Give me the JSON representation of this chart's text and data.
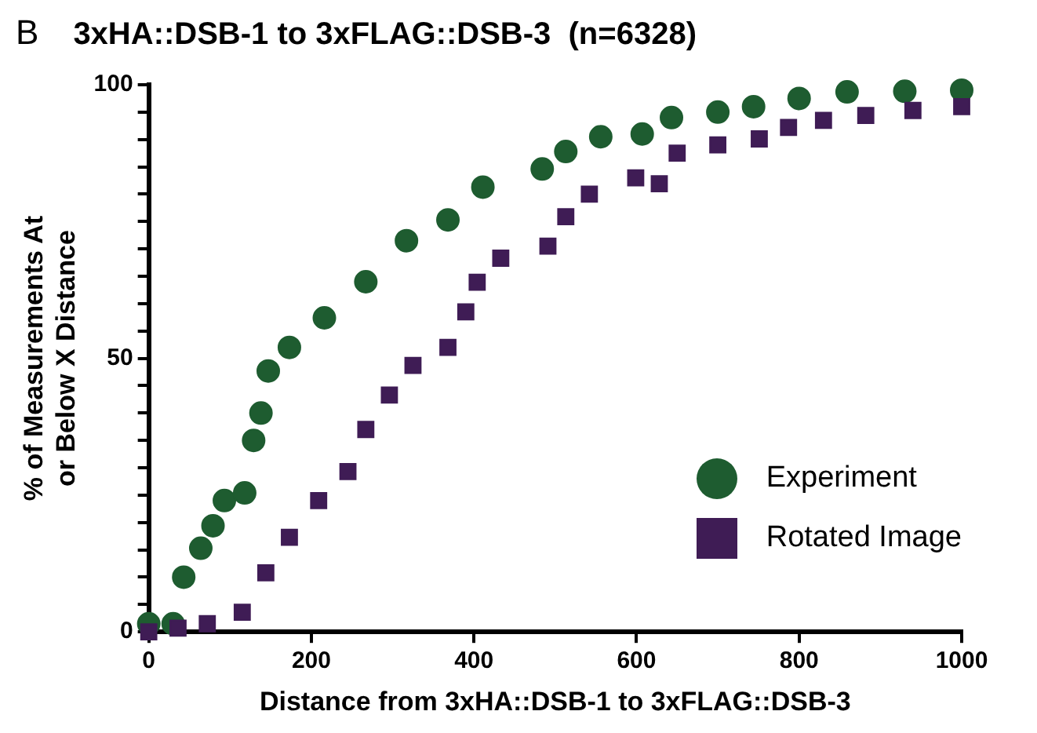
{
  "chart_data": {
    "type": "scatter",
    "title": "3xHA::DSB-1 to 3xFLAG::DSB-3  (n=6328)",
    "annotations": [
      "B"
    ],
    "xlabel": "Distance from 3xHA::DSB-1 to 3xFLAG::DSB-3",
    "ylabel": "% of Measurements At or Below X Distance",
    "series": [
      {
        "name": "Experiment",
        "color": "#1e5c30",
        "marker": "circle",
        "x": [
          0,
          30,
          43,
          64,
          79,
          93,
          118,
          129,
          138,
          147,
          173,
          216,
          267,
          317,
          368,
          411,
          484,
          513,
          556,
          607,
          643,
          700,
          744,
          800,
          859,
          930,
          1000
        ],
        "values": [
          1.5,
          1.5,
          10,
          15.3,
          19.4,
          24,
          25.4,
          35,
          40,
          47.7,
          52,
          57.4,
          64,
          71.5,
          75.3,
          81.3,
          84.6,
          87.8,
          90.5,
          91,
          94,
          95,
          96,
          97.5,
          98.7,
          98.8,
          99
        ]
      },
      {
        "name": "Rotated Image",
        "color": "#3f1c55",
        "marker": "square",
        "x": [
          0,
          36,
          72,
          115,
          144,
          173,
          209,
          245,
          267,
          296,
          325,
          368,
          390,
          404,
          433,
          491,
          513,
          542,
          599,
          628,
          650,
          700,
          751,
          787,
          830,
          882,
          940,
          1000
        ],
        "values": [
          0,
          0.7,
          1.5,
          3.6,
          10.8,
          17.3,
          24,
          29.3,
          37,
          43.3,
          48.7,
          52,
          58.5,
          63.9,
          68.3,
          70.5,
          75.9,
          80,
          83,
          81.9,
          87.5,
          89,
          90.1,
          92.2,
          93.5,
          94.4,
          95.3,
          96
        ]
      }
    ],
    "xlim": [
      0,
      1000
    ],
    "xticks": [
      0,
      200,
      400,
      600,
      800,
      1000
    ],
    "ylim": [
      0,
      100
    ],
    "yticks": [
      0,
      {
        "value": 5,
        "label": null
      },
      {
        "value": 10,
        "label": null
      },
      {
        "value": 15,
        "label": null
      },
      {
        "value": 20,
        "label": null
      },
      {
        "value": 25,
        "label": null
      },
      {
        "value": 30,
        "label": null
      },
      {
        "value": 35,
        "label": null
      },
      {
        "value": 40,
        "label": null
      },
      {
        "value": 45,
        "label": null
      },
      50,
      {
        "value": 55,
        "label": null
      },
      {
        "value": 60,
        "label": null
      },
      {
        "value": 65,
        "label": null
      },
      {
        "value": 70,
        "label": null
      },
      {
        "value": 75,
        "label": null
      },
      {
        "value": 80,
        "label": null
      },
      {
        "value": 85,
        "label": null
      },
      {
        "value": 90,
        "label": null
      },
      {
        "value": 95,
        "label": null
      },
      100
    ],
    "grid": false,
    "legend": "right"
  }
}
